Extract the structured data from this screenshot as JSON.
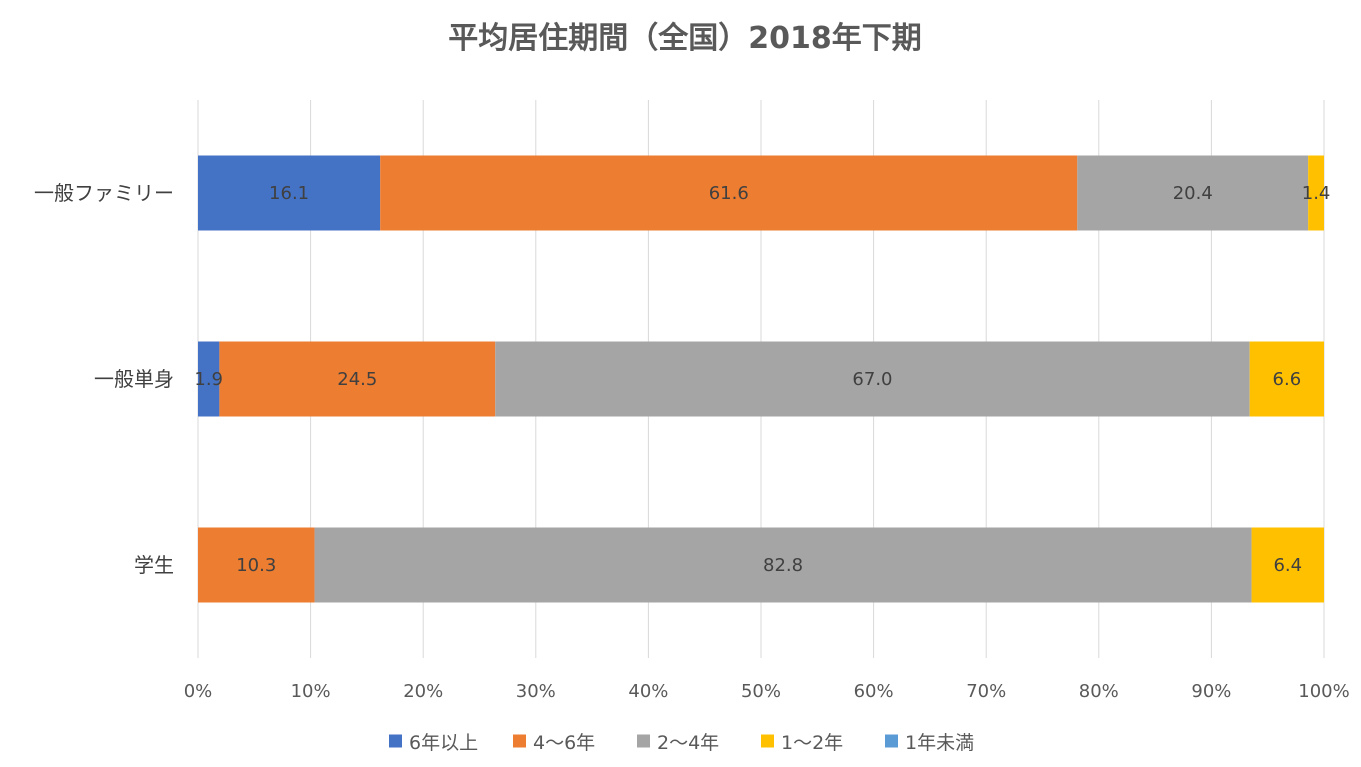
{
  "chart_data": {
    "type": "bar",
    "orientation": "horizontal",
    "stacked": "percent",
    "title": "平均居住期間（全国）2018年下期",
    "categories": [
      "一般ファミリー",
      "一般単身",
      "学生"
    ],
    "series": [
      {
        "name": "6年以上",
        "color": "#4472C4",
        "values": [
          16.1,
          1.9,
          0
        ],
        "labels": [
          "16.1",
          "1.9",
          ""
        ]
      },
      {
        "name": "4〜6年",
        "color": "#ED7D31",
        "values": [
          61.6,
          24.5,
          10.3
        ],
        "labels": [
          "61.6",
          "24.5",
          "10.3"
        ]
      },
      {
        "name": "2〜4年",
        "color": "#A5A5A5",
        "values": [
          20.4,
          67.0,
          82.8
        ],
        "labels": [
          "20.4",
          "67.0",
          "82.8"
        ]
      },
      {
        "name": "1〜2年",
        "color": "#FFC000",
        "values": [
          1.4,
          6.6,
          6.4
        ],
        "labels": [
          "1.4",
          "6.6",
          "6.4"
        ]
      },
      {
        "name": "1年未満",
        "color": "#5B9BD5",
        "values": [
          0,
          0,
          0
        ],
        "labels": [
          "",
          "",
          ""
        ]
      }
    ],
    "xlim": [
      0,
      100
    ],
    "xticks": [
      "0%",
      "10%",
      "20%",
      "30%",
      "40%",
      "50%",
      "60%",
      "70%",
      "80%",
      "90%",
      "100%"
    ],
    "grid": true,
    "legend_position": "bottom"
  }
}
